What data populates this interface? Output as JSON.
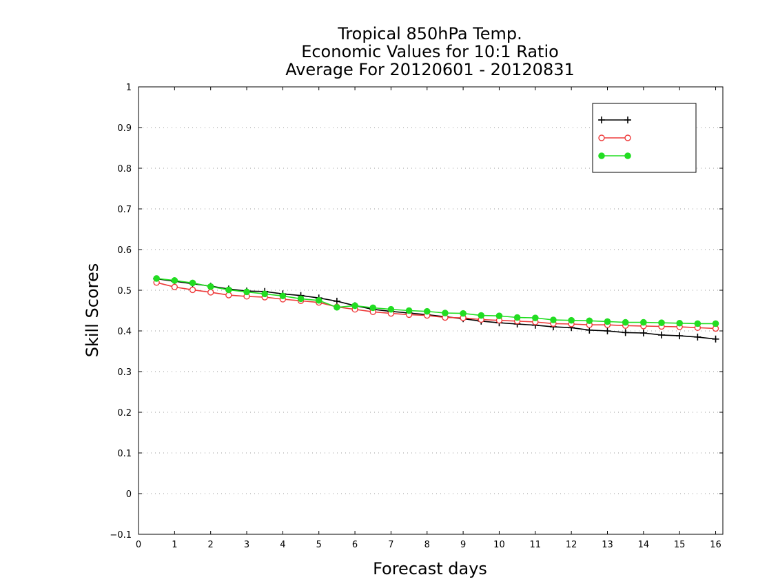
{
  "chart_data": {
    "type": "line",
    "title": [
      "Tropical 850hPa Temp.",
      "Economic Values for 10:1 Ratio",
      "Average For 20120601 - 20120831"
    ],
    "xlabel": "Forecast days",
    "ylabel": "Skill Scores",
    "xlim": [
      0,
      16.2
    ],
    "ylim": [
      -0.1,
      1.0
    ],
    "xticks": [
      0,
      1,
      2,
      3,
      4,
      5,
      6,
      7,
      8,
      9,
      10,
      11,
      12,
      13,
      14,
      15,
      16
    ],
    "yticks": [
      -0.1,
      0,
      0.1,
      0.2,
      0.3,
      0.4,
      0.5,
      0.6,
      0.7,
      0.8,
      0.9,
      1
    ],
    "ytick_labels": [
      "−0.1",
      "0",
      "0.1",
      "0.2",
      "0.3",
      "0.4",
      "0.5",
      "0.6",
      "0.7",
      "0.8",
      "0.9",
      "1"
    ],
    "grid": "horizontal dotted",
    "legend_position": "top-right",
    "x": [
      0.5,
      1,
      1.5,
      2,
      2.5,
      3,
      3.5,
      4,
      4.5,
      5,
      5.5,
      6,
      6.5,
      7,
      7.5,
      8,
      8.5,
      9,
      9.5,
      10,
      10.5,
      11,
      11.5,
      12,
      12.5,
      13,
      13.5,
      14,
      14.5,
      15,
      15.5,
      16
    ],
    "series": [
      {
        "name": "",
        "color": "#000000",
        "marker": "plus",
        "values": [
          0.528,
          0.522,
          0.516,
          0.51,
          0.503,
          0.498,
          0.497,
          0.491,
          0.487,
          0.481,
          0.473,
          0.462,
          0.453,
          0.448,
          0.444,
          0.44,
          0.435,
          0.43,
          0.424,
          0.42,
          0.417,
          0.414,
          0.41,
          0.408,
          0.402,
          0.4,
          0.396,
          0.395,
          0.39,
          0.388,
          0.385,
          0.38
        ]
      },
      {
        "name": "",
        "color": "#ee3a3a",
        "marker": "open-circle",
        "values": [
          0.519,
          0.508,
          0.501,
          0.495,
          0.488,
          0.485,
          0.483,
          0.478,
          0.474,
          0.47,
          0.459,
          0.453,
          0.447,
          0.443,
          0.44,
          0.438,
          0.433,
          0.432,
          0.428,
          0.426,
          0.424,
          0.422,
          0.418,
          0.417,
          0.415,
          0.415,
          0.413,
          0.412,
          0.411,
          0.41,
          0.408,
          0.406
        ]
      },
      {
        "name": "",
        "color": "#22dd22",
        "marker": "filled-circle",
        "values": [
          0.529,
          0.524,
          0.518,
          0.509,
          0.501,
          0.496,
          0.491,
          0.486,
          0.479,
          0.475,
          0.458,
          0.462,
          0.457,
          0.453,
          0.45,
          0.448,
          0.444,
          0.443,
          0.438,
          0.437,
          0.433,
          0.432,
          0.427,
          0.426,
          0.425,
          0.423,
          0.421,
          0.421,
          0.42,
          0.419,
          0.418,
          0.418
        ]
      }
    ]
  }
}
